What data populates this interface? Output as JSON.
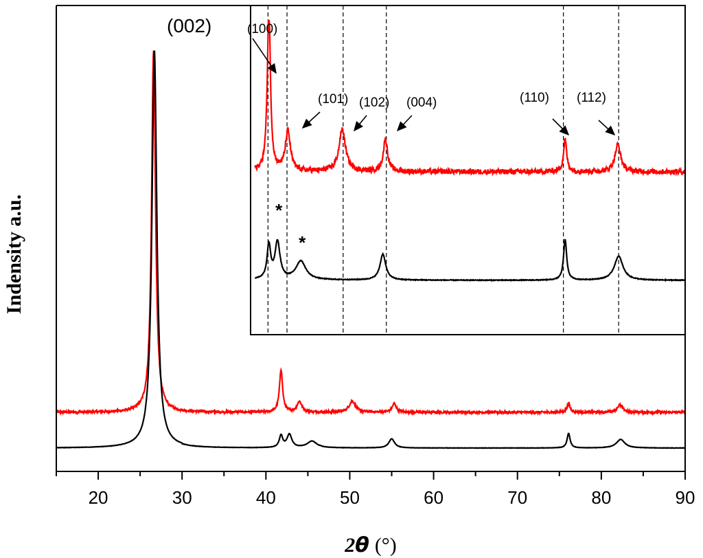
{
  "chart_data": {
    "type": "line",
    "xlabel_prefix": "2",
    "xlabel_symbol": "θ",
    "xlabel_unit": "(°)",
    "ylabel": "Indensity a.u.",
    "xlim": [
      15,
      90
    ],
    "x_ticks": [
      20,
      30,
      40,
      50,
      60,
      70,
      80,
      90
    ],
    "y_ticks_shown": false,
    "grid": false,
    "legend": "none",
    "main_annotation": "(002)",
    "series": [
      {
        "color": "#ff0000",
        "baseline": 0.0,
        "noise": 0.6,
        "peaks": [
          {
            "x": 26.6,
            "height": 55,
            "width": 0.28
          },
          {
            "x": 41.8,
            "height": 6.5,
            "width": 0.22
          },
          {
            "x": 44.0,
            "height": 1.6,
            "width": 0.35
          },
          {
            "x": 50.3,
            "height": 1.7,
            "width": 0.45
          },
          {
            "x": 55.3,
            "height": 1.3,
            "width": 0.3
          },
          {
            "x": 76.1,
            "height": 1.3,
            "width": 0.22
          },
          {
            "x": 82.2,
            "height": 1.1,
            "width": 0.4
          }
        ]
      },
      {
        "color": "#000000",
        "baseline": -5.0,
        "noise": 0.15,
        "peaks": [
          {
            "x": 26.7,
            "height": 60,
            "width": 0.35
          },
          {
            "x": 41.8,
            "height": 1.8,
            "width": 0.25
          },
          {
            "x": 42.8,
            "height": 2.0,
            "width": 0.35
          },
          {
            "x": 45.5,
            "height": 1.0,
            "width": 0.7
          },
          {
            "x": 55.0,
            "height": 1.4,
            "width": 0.4
          },
          {
            "x": 76.1,
            "height": 2.2,
            "width": 0.22
          },
          {
            "x": 82.3,
            "height": 1.3,
            "width": 0.6
          }
        ]
      }
    ],
    "inset": {
      "xlim": [
        40,
        90
      ],
      "dashed_lines_x": [
        41.7,
        43.9,
        50.4,
        55.4,
        75.9,
        82.3
      ],
      "labels": [
        {
          "text": "(100)",
          "peak_x": 41.7
        },
        {
          "text": "(101)",
          "peak_x": 43.9
        },
        {
          "text": "(102)",
          "peak_x": 50.4
        },
        {
          "text": "(004)",
          "peak_x": 55.4
        },
        {
          "text": "(110)",
          "peak_x": 75.9
        },
        {
          "text": "(112)",
          "peak_x": 82.3
        }
      ],
      "asterisks": [
        {
          "text": "*",
          "x": 42.8
        },
        {
          "text": "*",
          "x": 45.5
        }
      ]
    }
  }
}
